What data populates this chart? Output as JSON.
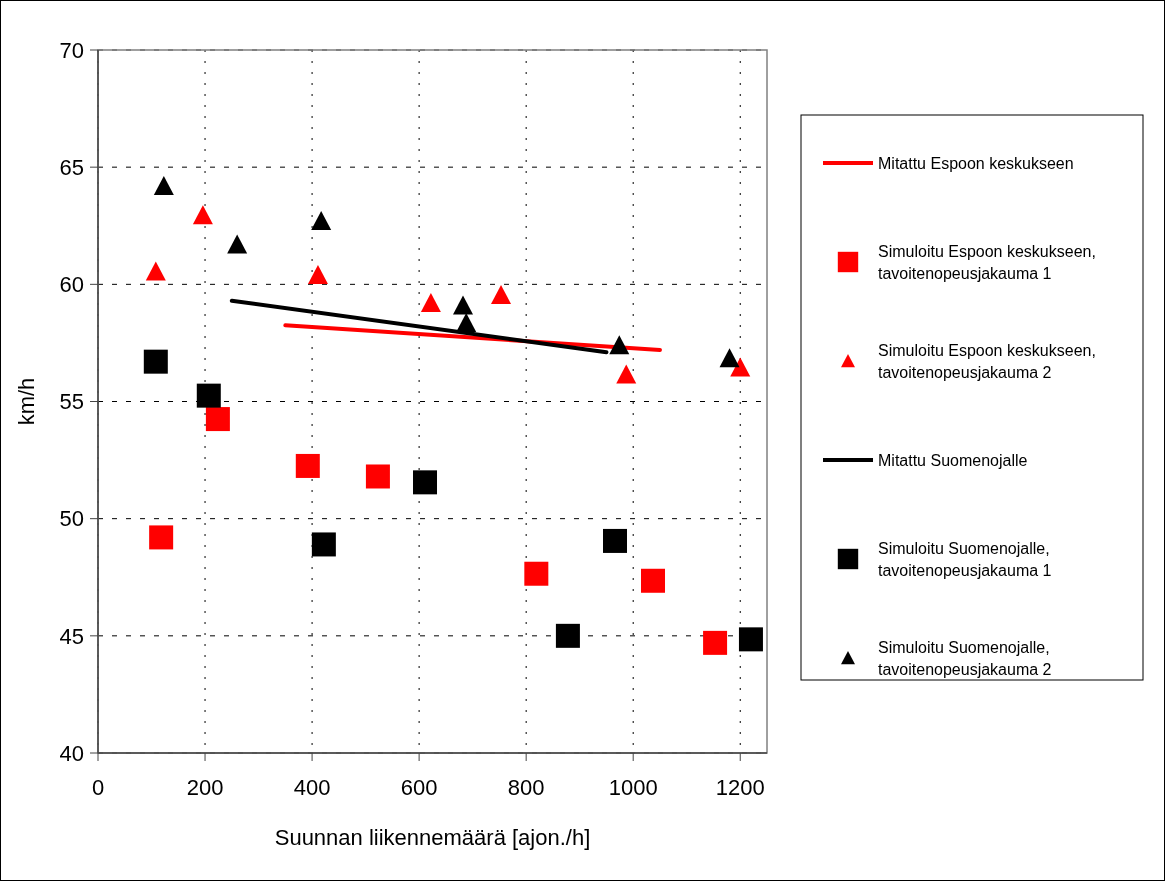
{
  "chart_data": {
    "type": "scatter",
    "xlabel": "Suunnan liikennemäärä [ajon./h]",
    "ylabel": "km/h",
    "xlim": [
      0,
      1250
    ],
    "ylim": [
      40,
      70
    ],
    "xticks": [
      0,
      200,
      400,
      600,
      800,
      1000,
      1200
    ],
    "yticks": [
      40,
      45,
      50,
      55,
      60,
      65,
      70
    ],
    "grid": true,
    "legend": "right",
    "series": [
      {
        "name": "Mitattu Espoon keskukseen",
        "type": "line",
        "color": "#ff0000",
        "marker": "none",
        "line_style": "solid",
        "x": [
          350,
          1050
        ],
        "values": [
          58.25,
          57.2
        ]
      },
      {
        "name": "Simuloitu Espoon keskukseen, tavoitenopeusjakauma 1",
        "color": "#ff0000",
        "marker": "square",
        "x": [
          118,
          224,
          392,
          523,
          819,
          1037,
          1153
        ],
        "values": [
          49.2,
          54.25,
          52.25,
          51.8,
          47.65,
          47.35,
          44.7
        ]
      },
      {
        "name": "Simuloitu Espoon keskukseen, tavoitenopeusjakauma 2",
        "color": "#ff0000",
        "marker": "triangle",
        "x": [
          108,
          196,
          411,
          622,
          753,
          987,
          1200
        ],
        "values": [
          60.55,
          62.95,
          60.4,
          59.2,
          59.55,
          56.15,
          56.45
        ]
      },
      {
        "name": "Mitattu Suomenojalle",
        "type": "line",
        "color": "#000000",
        "marker": "none",
        "line_style": "solid",
        "x": [
          250,
          950
        ],
        "values": [
          59.3,
          57.1
        ]
      },
      {
        "name": "Simuloitu Suomenojalle, tavoitenopeusjakauma 1",
        "color": "#000000",
        "marker": "square",
        "x": [
          108,
          207,
          422,
          611,
          878,
          966,
          1220
        ],
        "values": [
          56.7,
          55.25,
          48.9,
          51.55,
          45,
          49.05,
          44.85
        ]
      },
      {
        "name": "Simuloitu Suomenojalle, tavoitenopeusjakauma 2",
        "color": "#000000",
        "marker": "triangle",
        "x": [
          123,
          260,
          417,
          682,
          688,
          974,
          1180
        ],
        "values": [
          64.2,
          61.7,
          62.7,
          59.1,
          58.35,
          57.4,
          56.85
        ]
      }
    ]
  }
}
